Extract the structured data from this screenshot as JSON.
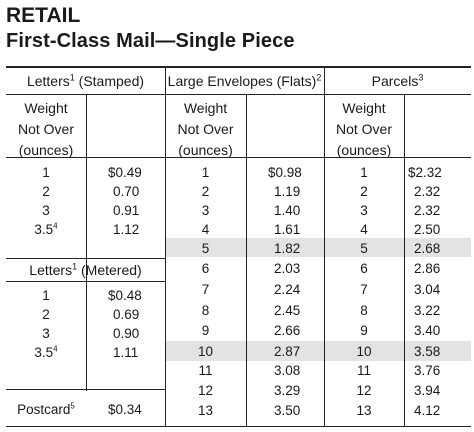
{
  "title": "RETAIL",
  "subtitle": "First-Class Mail—Single Piece",
  "sections": {
    "letters_stamped": {
      "label": "Letters",
      "footnote": "1",
      "qualifier": "(Stamped)"
    },
    "letters_metered": {
      "label": "Letters",
      "footnote": "1",
      "qualifier": "(Metered)"
    },
    "large_envelopes": {
      "label": "Large Envelopes (Flats)",
      "footnote": "2"
    },
    "parcels": {
      "label": "Parcels",
      "footnote": "3"
    },
    "postcard": {
      "label": "Postcard",
      "footnote": "5",
      "price": "$0.34"
    }
  },
  "weight_header": {
    "line1": "Weight",
    "line2": "Not Over",
    "line3": "(ounces)"
  },
  "letters_stamped_rows": [
    {
      "w": "1",
      "wsup": "",
      "p": "$0.49"
    },
    {
      "w": "2",
      "wsup": "",
      "p": "0.70"
    },
    {
      "w": "3",
      "wsup": "",
      "p": "0.91"
    },
    {
      "w": "3.5",
      "wsup": "4",
      "p": "1.12"
    }
  ],
  "letters_metered_rows": [
    {
      "w": "1",
      "wsup": "",
      "p": "$0.48"
    },
    {
      "w": "2",
      "wsup": "",
      "p": "0.69"
    },
    {
      "w": "3",
      "wsup": "",
      "p": "0.90"
    },
    {
      "w": "3.5",
      "wsup": "4",
      "p": "1.11"
    }
  ],
  "flats_rows": [
    {
      "w": "1",
      "p": "$0.98"
    },
    {
      "w": "2",
      "p": "1.19"
    },
    {
      "w": "3",
      "p": "1.40"
    },
    {
      "w": "4",
      "p": "1.61"
    },
    {
      "w": "5",
      "p": "1.82"
    },
    {
      "w": "6",
      "p": "2.03"
    },
    {
      "w": "7",
      "p": "2.24"
    },
    {
      "w": "8",
      "p": "2.45"
    },
    {
      "w": "9",
      "p": "2.66"
    },
    {
      "w": "10",
      "p": "2.87"
    },
    {
      "w": "11",
      "p": "3.08"
    },
    {
      "w": "12",
      "p": "3.29"
    },
    {
      "w": "13",
      "p": "3.50"
    }
  ],
  "parcels_rows": [
    {
      "w": "1",
      "p": "$2.32"
    },
    {
      "w": "2",
      "p": "2.32"
    },
    {
      "w": "3",
      "p": "2.32"
    },
    {
      "w": "4",
      "p": "2.50"
    },
    {
      "w": "5",
      "p": "2.68"
    },
    {
      "w": "6",
      "p": "2.86"
    },
    {
      "w": "7",
      "p": "3.04"
    },
    {
      "w": "8",
      "p": "3.22"
    },
    {
      "w": "9",
      "p": "3.40"
    },
    {
      "w": "10",
      "p": "3.58"
    },
    {
      "w": "11",
      "p": "3.76"
    },
    {
      "w": "12",
      "p": "3.94"
    },
    {
      "w": "13",
      "p": "4.12"
    }
  ],
  "shaded_weights": [
    "5",
    "10"
  ],
  "colors": {
    "shade": "#e3e3e3",
    "rule": "#222222"
  }
}
